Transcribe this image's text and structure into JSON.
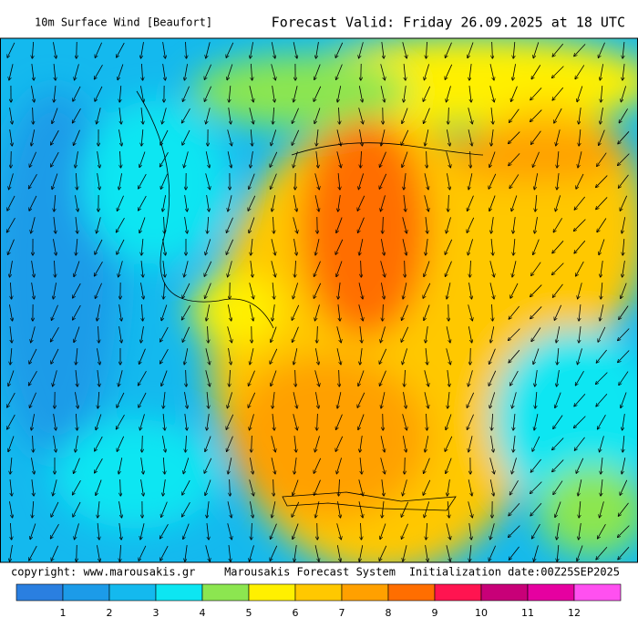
{
  "header": {
    "left": "10m Surface Wind [Beaufort]",
    "right": "Forecast Valid:  Friday 26.09.2025 at 18 UTC"
  },
  "footer": {
    "copyright": "copyright: www.marousakis.gr",
    "system": "Marousakis Forecast System",
    "init": "Initialization date:00Z25SEP2025"
  },
  "legend": {
    "labels": [
      "1",
      "2",
      "3",
      "4",
      "5",
      "6",
      "7",
      "8",
      "9",
      "10",
      "11",
      "12"
    ],
    "colors": [
      "#2a7fe0",
      "#1c9be8",
      "#14b9ee",
      "#0de6f2",
      "#8ce650",
      "#fff000",
      "#ffc800",
      "#ffa000",
      "#ff6e00",
      "#ff1450",
      "#c80078",
      "#e600a0",
      "#ff50f0"
    ]
  }
}
